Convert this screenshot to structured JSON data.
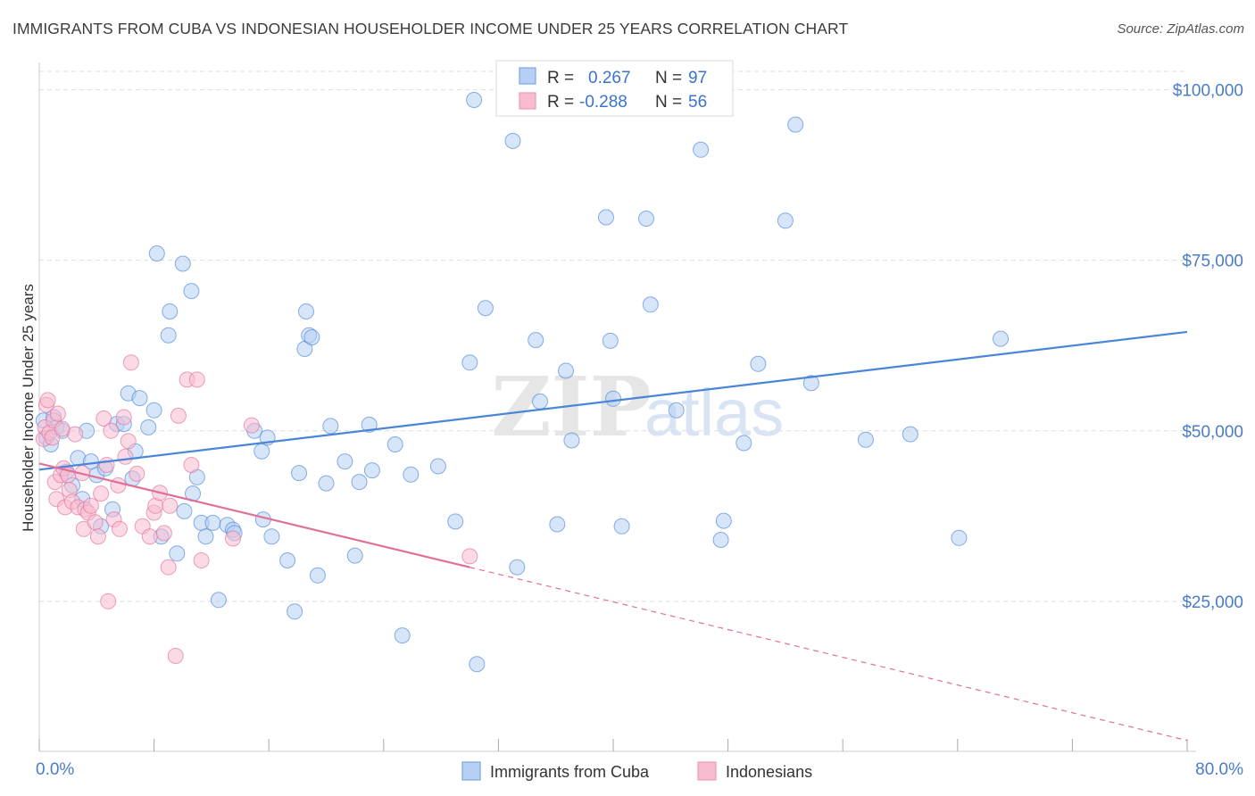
{
  "title": "IMMIGRANTS FROM CUBA VS INDONESIAN HOUSEHOLDER INCOME UNDER 25 YEARS CORRELATION CHART",
  "source": "Source: ZipAtlas.com",
  "watermark": {
    "zip": "ZIP",
    "atlas": "atlas"
  },
  "colors": {
    "blue": "#4a86d8",
    "blue_fill": "#b6cff2",
    "pink": "#e0709a",
    "pink_fill": "#f7bccf",
    "axis_text": "#4a7cc9",
    "grid": "#dddddd"
  },
  "legend_stats": [
    {
      "r_label": "R =",
      "r_value": "0.267",
      "n_label": "N =",
      "n_value": "97"
    },
    {
      "r_label": "R =",
      "r_value": "-0.288",
      "n_label": "N =",
      "n_value": "56"
    }
  ],
  "chart_data": {
    "type": "scatter",
    "title": "IMMIGRANTS FROM CUBA VS INDONESIAN HOUSEHOLDER INCOME UNDER 25 YEARS CORRELATION CHART",
    "xlabel": "",
    "ylabel": "Householder Income Under 25 years",
    "xlim": [
      0,
      80
    ],
    "ylim": [
      3000,
      104000
    ],
    "x_tick_labels": [
      "0.0%",
      "80.0%"
    ],
    "y_ticks": [
      25000,
      50000,
      75000,
      100000
    ],
    "y_tick_labels": [
      "$25,000",
      "$50,000",
      "$75,000",
      "$100,000"
    ],
    "grid": true,
    "legend": "bottom-center",
    "series": [
      {
        "name": "Immigrants from Cuba",
        "color": "#4a86d8",
        "trend": {
          "x": [
            0,
            80
          ],
          "y": [
            44300,
            64500
          ]
        },
        "points": [
          [
            0.3,
            51500
          ],
          [
            0.5,
            49000
          ],
          [
            0.8,
            48000
          ],
          [
            1.0,
            52000
          ],
          [
            1.2,
            50500
          ],
          [
            1.6,
            50000
          ],
          [
            1.9,
            44000
          ],
          [
            2.3,
            42000
          ],
          [
            2.7,
            46000
          ],
          [
            3.0,
            40000
          ],
          [
            3.3,
            50000
          ],
          [
            3.6,
            45500
          ],
          [
            4.0,
            43500
          ],
          [
            4.3,
            36000
          ],
          [
            4.6,
            44500
          ],
          [
            5.1,
            38500
          ],
          [
            5.4,
            51000
          ],
          [
            5.9,
            51000
          ],
          [
            6.2,
            55500
          ],
          [
            6.5,
            43000
          ],
          [
            6.7,
            47000
          ],
          [
            7.0,
            54800
          ],
          [
            7.6,
            50500
          ],
          [
            8.0,
            53000
          ],
          [
            8.2,
            76000
          ],
          [
            8.5,
            34500
          ],
          [
            9.0,
            64000
          ],
          [
            9.1,
            67500
          ],
          [
            9.6,
            32000
          ],
          [
            10.0,
            74500
          ],
          [
            10.1,
            38200
          ],
          [
            10.6,
            70500
          ],
          [
            10.7,
            40800
          ],
          [
            11.0,
            43200
          ],
          [
            11.3,
            36500
          ],
          [
            11.6,
            34500
          ],
          [
            12.1,
            36500
          ],
          [
            12.5,
            25200
          ],
          [
            13.1,
            36200
          ],
          [
            13.5,
            35500
          ],
          [
            13.6,
            35000
          ],
          [
            15.0,
            50000
          ],
          [
            15.5,
            47000
          ],
          [
            15.6,
            37000
          ],
          [
            15.9,
            49000
          ],
          [
            16.2,
            34500
          ],
          [
            17.3,
            31000
          ],
          [
            17.8,
            23500
          ],
          [
            18.1,
            43800
          ],
          [
            18.5,
            62000
          ],
          [
            18.6,
            67500
          ],
          [
            18.8,
            64000
          ],
          [
            19.0,
            63700
          ],
          [
            19.4,
            28800
          ],
          [
            20.0,
            42300
          ],
          [
            20.3,
            50700
          ],
          [
            21.3,
            45500
          ],
          [
            22.0,
            31700
          ],
          [
            22.3,
            42500
          ],
          [
            23.0,
            50900
          ],
          [
            23.2,
            44200
          ],
          [
            24.8,
            48000
          ],
          [
            25.3,
            20000
          ],
          [
            25.9,
            43600
          ],
          [
            27.8,
            44800
          ],
          [
            29.0,
            36700
          ],
          [
            30.0,
            60000
          ],
          [
            30.3,
            98500
          ],
          [
            30.5,
            15800
          ],
          [
            31.1,
            68000
          ],
          [
            33.0,
            92500
          ],
          [
            33.3,
            30000
          ],
          [
            34.6,
            63300
          ],
          [
            34.9,
            54300
          ],
          [
            36.1,
            36300
          ],
          [
            36.7,
            58800
          ],
          [
            37.1,
            48600
          ],
          [
            39.5,
            81300
          ],
          [
            39.8,
            63200
          ],
          [
            40.0,
            54700
          ],
          [
            40.6,
            36000
          ],
          [
            42.3,
            81100
          ],
          [
            42.6,
            68500
          ],
          [
            44.4,
            53000
          ],
          [
            46.1,
            91200
          ],
          [
            47.5,
            34000
          ],
          [
            47.7,
            36800
          ],
          [
            49.1,
            48200
          ],
          [
            50.1,
            59800
          ],
          [
            52.0,
            80800
          ],
          [
            52.7,
            94900
          ],
          [
            53.8,
            57000
          ],
          [
            57.6,
            48700
          ],
          [
            60.7,
            49500
          ],
          [
            64.1,
            34300
          ],
          [
            67.0,
            63500
          ]
        ]
      },
      {
        "name": "Indonesians",
        "color": "#e0709a",
        "trend": {
          "x": [
            0,
            30
          ],
          "y": [
            45200,
            30000
          ]
        },
        "trend_extension": {
          "x": [
            30,
            80
          ],
          "y": [
            30000,
            4600
          ]
        },
        "points": [
          [
            0.3,
            48800
          ],
          [
            0.4,
            50500
          ],
          [
            0.5,
            53800
          ],
          [
            0.6,
            54500
          ],
          [
            0.7,
            49700
          ],
          [
            0.9,
            49000
          ],
          [
            1.0,
            51500
          ],
          [
            1.1,
            42500
          ],
          [
            1.2,
            40000
          ],
          [
            1.3,
            52500
          ],
          [
            1.5,
            43500
          ],
          [
            1.6,
            50300
          ],
          [
            1.7,
            44500
          ],
          [
            1.8,
            38800
          ],
          [
            2.0,
            43500
          ],
          [
            2.1,
            41300
          ],
          [
            2.3,
            39600
          ],
          [
            2.5,
            49500
          ],
          [
            2.7,
            38800
          ],
          [
            3.0,
            43800
          ],
          [
            3.1,
            35600
          ],
          [
            3.2,
            38500
          ],
          [
            3.4,
            38000
          ],
          [
            3.6,
            39000
          ],
          [
            3.9,
            36600
          ],
          [
            4.1,
            34500
          ],
          [
            4.3,
            40800
          ],
          [
            4.5,
            51800
          ],
          [
            4.7,
            45000
          ],
          [
            4.8,
            25000
          ],
          [
            5.0,
            50000
          ],
          [
            5.2,
            37000
          ],
          [
            5.5,
            42000
          ],
          [
            5.6,
            35600
          ],
          [
            5.9,
            52000
          ],
          [
            6.0,
            46200
          ],
          [
            6.2,
            48500
          ],
          [
            6.4,
            60000
          ],
          [
            6.8,
            43700
          ],
          [
            7.2,
            36000
          ],
          [
            7.7,
            34500
          ],
          [
            8.0,
            38000
          ],
          [
            8.1,
            39000
          ],
          [
            8.4,
            40900
          ],
          [
            8.7,
            35000
          ],
          [
            9.0,
            30000
          ],
          [
            9.1,
            39000
          ],
          [
            9.5,
            17000
          ],
          [
            9.7,
            52200
          ],
          [
            10.3,
            57500
          ],
          [
            10.6,
            45000
          ],
          [
            11.0,
            57500
          ],
          [
            11.3,
            31000
          ],
          [
            13.5,
            34200
          ],
          [
            14.8,
            50800
          ],
          [
            30.0,
            31600
          ]
        ]
      }
    ]
  }
}
